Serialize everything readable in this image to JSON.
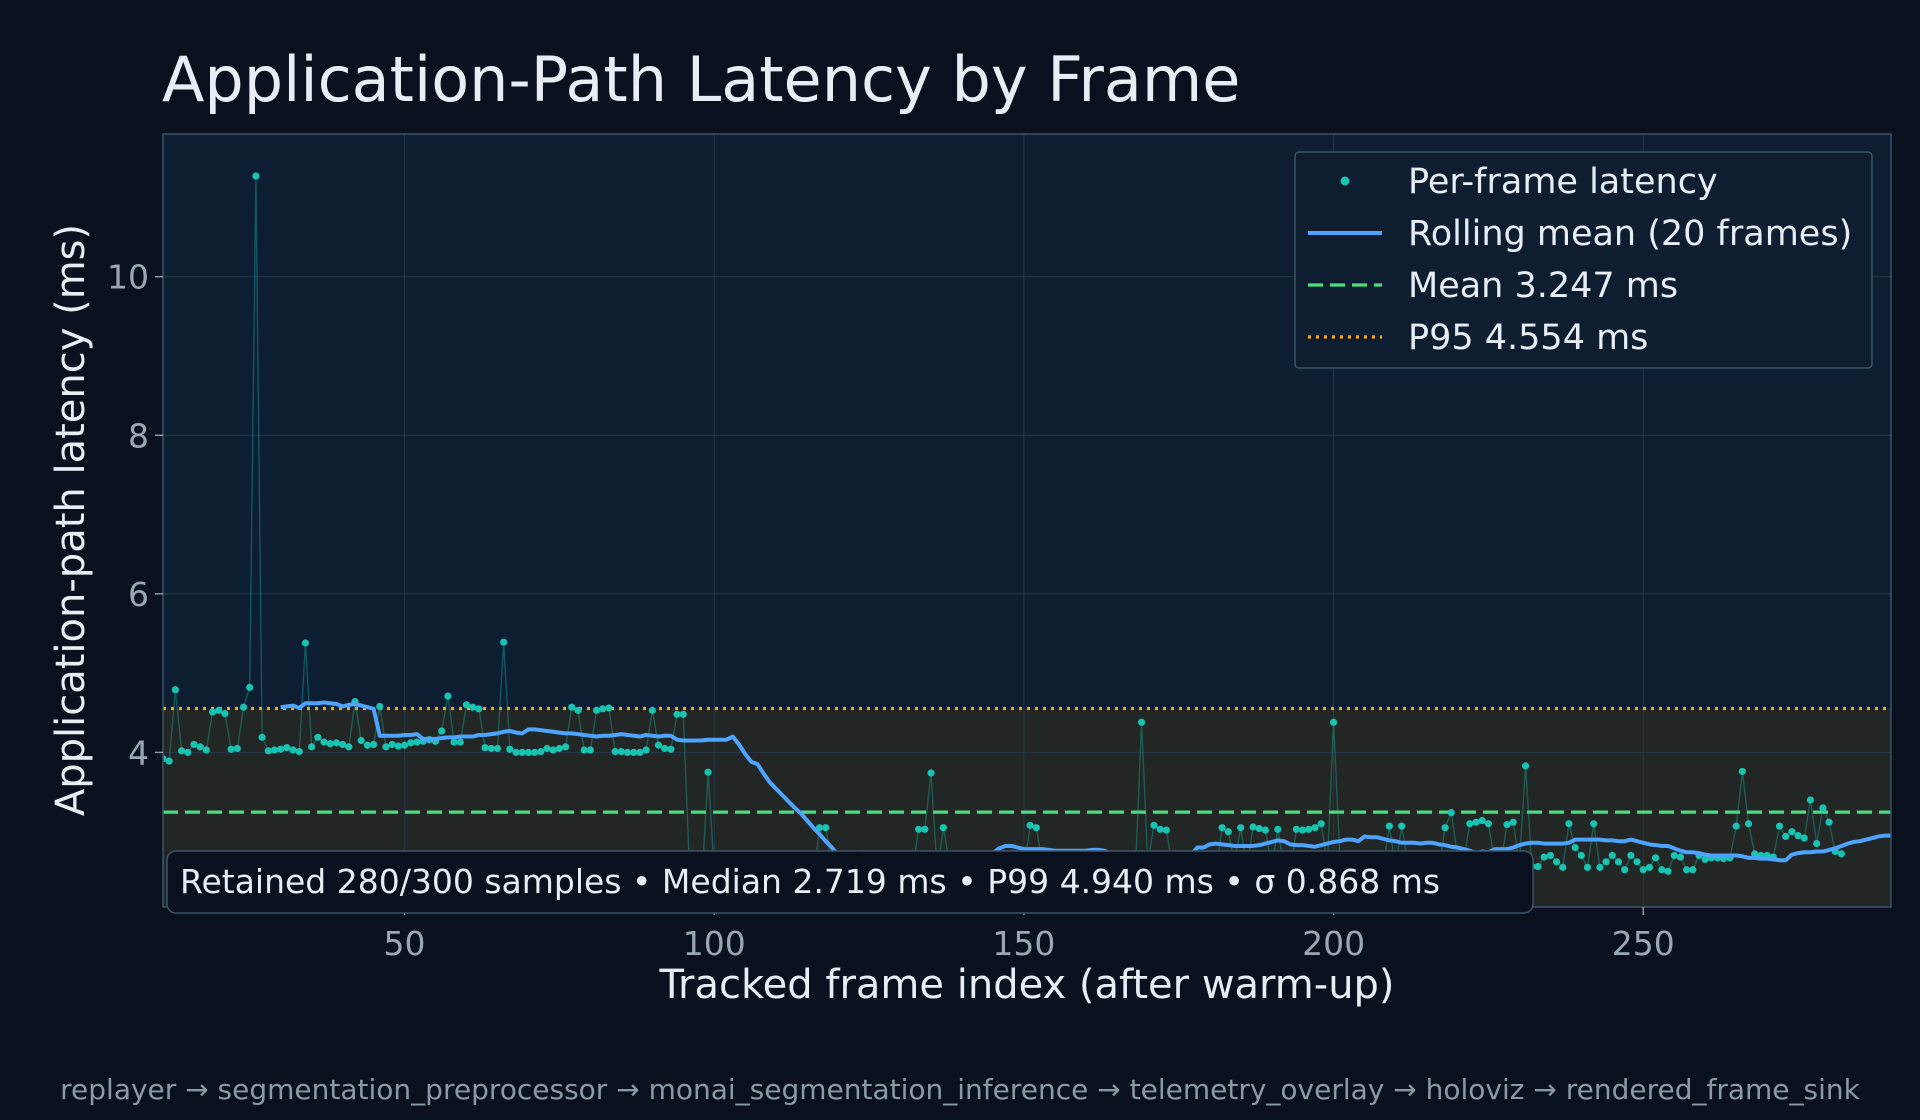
{
  "chart_data": {
    "type": "line",
    "title": "Application-Path Latency by Frame",
    "xlabel": "Tracked frame index (after warm-up)",
    "ylabel": "Application-path latency (ms)",
    "xlim": [
      11,
      290
    ],
    "ylim": [
      2.05,
      11.8
    ],
    "x_ticks": [
      50,
      100,
      150,
      200,
      250
    ],
    "y_ticks": [
      4,
      6,
      8,
      10
    ],
    "grid": true,
    "legend_position": "top-right",
    "colors": {
      "points": "#19c3b1",
      "rolling": "#4ea3ff",
      "mean": "#4ade80",
      "p95": "#f5a524",
      "band": "#2a2b24",
      "plot_bg": "#0d1e33"
    },
    "legend": [
      {
        "label": "Per-frame latency",
        "kind": "points"
      },
      {
        "label": "Rolling mean (20 frames)",
        "kind": "rolling"
      },
      {
        "label": "Mean 3.247 ms",
        "kind": "mean"
      },
      {
        "label": "P95 4.554 ms",
        "kind": "p95"
      }
    ],
    "reference_lines": {
      "mean": 3.247,
      "p95": 4.554
    },
    "series": [
      {
        "name": "Per-frame latency",
        "x_start": 11,
        "x_step": 1,
        "values": [
          3.92,
          3.89,
          4.79,
          4.02,
          4.0,
          4.1,
          4.07,
          4.03,
          4.51,
          4.53,
          4.49,
          4.04,
          4.05,
          4.57,
          4.82,
          11.27,
          4.19,
          4.02,
          4.03,
          4.04,
          4.06,
          4.03,
          4.01,
          5.38,
          4.07,
          4.19,
          4.13,
          4.11,
          4.12,
          4.1,
          4.07,
          4.64,
          4.15,
          4.09,
          4.1,
          4.58,
          4.07,
          4.1,
          4.08,
          4.09,
          4.12,
          4.13,
          4.14,
          4.16,
          4.14,
          4.27,
          4.71,
          4.13,
          4.13,
          4.6,
          4.57,
          4.55,
          4.06,
          4.05,
          4.05,
          5.39,
          4.04,
          4.0,
          4.0,
          4.0,
          4.0,
          4.01,
          4.05,
          4.03,
          4.05,
          4.07,
          4.57,
          4.53,
          4.03,
          4.03,
          4.53,
          4.55,
          4.56,
          4.01,
          4.01,
          4.0,
          4.0,
          4.0,
          4.03,
          4.53,
          4.09,
          4.05,
          4.04,
          4.48,
          4.48,
          2.55,
          2.4,
          2.35,
          3.75,
          2.5,
          2.45,
          2.4,
          2.4,
          2.45,
          2.4,
          2.4,
          2.4,
          2.45,
          2.4,
          2.4,
          2.4,
          2.45,
          2.4,
          2.4,
          2.4,
          2.4,
          3.05,
          3.05,
          2.6,
          2.55,
          2.5,
          2.5,
          2.5,
          2.5,
          2.5,
          2.5,
          2.5,
          2.5,
          2.5,
          2.5,
          2.5,
          2.5,
          3.03,
          3.03,
          3.74,
          2.5,
          3.05,
          2.6,
          2.55,
          2.5,
          2.5,
          2.5,
          2.5,
          2.5,
          2.5,
          2.5,
          2.5,
          2.5,
          2.5,
          2.5,
          3.08,
          3.05,
          2.6,
          2.55,
          2.5,
          2.5,
          2.5,
          2.5,
          2.5,
          2.5,
          2.5,
          2.5,
          2.5,
          2.5,
          2.5,
          2.5,
          2.5,
          2.5,
          4.38,
          2.6,
          3.08,
          3.03,
          3.02,
          2.55,
          2.5,
          2.5,
          2.5,
          2.5,
          2.5,
          2.5,
          2.5,
          3.05,
          3.0,
          2.6,
          3.05,
          2.55,
          3.06,
          3.04,
          3.02,
          2.55,
          3.03,
          2.55,
          2.5,
          3.03,
          3.02,
          3.03,
          3.05,
          3.1,
          2.6,
          4.38,
          2.7,
          2.55,
          2.5,
          2.6,
          2.55,
          2.5,
          2.5,
          2.55,
          3.07,
          2.55,
          3.07,
          2.6,
          2.55,
          2.5,
          2.55,
          2.5,
          2.55,
          3.05,
          3.24,
          2.7,
          2.65,
          3.1,
          3.12,
          3.14,
          3.1,
          2.63,
          2.6,
          3.09,
          3.12,
          2.6,
          3.83,
          2.56,
          2.56,
          2.68,
          2.7,
          2.62,
          2.55,
          3.1,
          2.8,
          2.7,
          2.55,
          3.1,
          2.55,
          2.62,
          2.7,
          2.62,
          2.52,
          2.7,
          2.62,
          2.52,
          2.55,
          2.67,
          2.52,
          2.5,
          2.7,
          2.68,
          2.52,
          2.52,
          2.7,
          2.65,
          2.67,
          2.67,
          2.66,
          2.67,
          3.07,
          3.76,
          3.1,
          2.72,
          2.7,
          2.7,
          2.68,
          3.07,
          2.94,
          3.0,
          2.95,
          2.92,
          3.4,
          2.85,
          3.3,
          3.12,
          2.75,
          2.72
        ]
      },
      {
        "name": "Rolling mean (20 frames)",
        "x_start": 30,
        "x_step": 1,
        "values": [
          4.57,
          4.58,
          4.59,
          4.56,
          4.62,
          4.62,
          4.62,
          4.63,
          4.62,
          4.61,
          4.58,
          4.6,
          4.61,
          4.59,
          4.57,
          4.55,
          4.21,
          4.21,
          4.21,
          4.21,
          4.22,
          4.22,
          4.23,
          4.17,
          4.17,
          4.17,
          4.18,
          4.19,
          4.19,
          4.2,
          4.2,
          4.2,
          4.22,
          4.22,
          4.23,
          4.24,
          4.26,
          4.27,
          4.25,
          4.24,
          4.29,
          4.29,
          4.28,
          4.27,
          4.26,
          4.25,
          4.24,
          4.24,
          4.23,
          4.22,
          4.21,
          4.2,
          4.21,
          4.21,
          4.22,
          4.23,
          4.22,
          4.21,
          4.2,
          4.22,
          4.21,
          4.2,
          4.21,
          4.21,
          4.16,
          4.15,
          4.15,
          4.15,
          4.15,
          4.16,
          4.16,
          4.16,
          4.16,
          4.2,
          4.1,
          3.98,
          3.88,
          3.85,
          3.73,
          3.62,
          3.54,
          3.46,
          3.38,
          3.3,
          3.23,
          3.14,
          3.05,
          2.97,
          2.88,
          2.8,
          2.7,
          2.7,
          2.7,
          2.7,
          2.74,
          2.7,
          2.7,
          2.7,
          2.7,
          2.7,
          2.7,
          2.7,
          2.7,
          2.7,
          2.7,
          2.7,
          2.7,
          2.7,
          2.7,
          2.7,
          2.7,
          2.7,
          2.7,
          2.7,
          2.7,
          2.73,
          2.79,
          2.82,
          2.82,
          2.8,
          2.78,
          2.78,
          2.78,
          2.78,
          2.77,
          2.76,
          2.76,
          2.76,
          2.76,
          2.76,
          2.76,
          2.77,
          2.77,
          2.76,
          2.73,
          2.72,
          2.71,
          2.71,
          2.71,
          2.7,
          2.7,
          2.7,
          2.7,
          2.7,
          2.7,
          2.7,
          2.7,
          2.71,
          2.8,
          2.8,
          2.84,
          2.85,
          2.84,
          2.83,
          2.82,
          2.82,
          2.82,
          2.82,
          2.83,
          2.85,
          2.87,
          2.89,
          2.88,
          2.84,
          2.83,
          2.83,
          2.82,
          2.81,
          2.83,
          2.85,
          2.87,
          2.88,
          2.9,
          2.9,
          2.88,
          2.94,
          2.93,
          2.93,
          2.91,
          2.89,
          2.88,
          2.86,
          2.86,
          2.86,
          2.85,
          2.86,
          2.86,
          2.84,
          2.83,
          2.81,
          2.8,
          2.78,
          2.76,
          2.73,
          2.75,
          2.74,
          2.78,
          2.78,
          2.78,
          2.8,
          2.83,
          2.85,
          2.86,
          2.86,
          2.85,
          2.85,
          2.85,
          2.85,
          2.86,
          2.9,
          2.9,
          2.9,
          2.9,
          2.9,
          2.89,
          2.89,
          2.88,
          2.88,
          2.9,
          2.88,
          2.86,
          2.84,
          2.83,
          2.82,
          2.82,
          2.79,
          2.76,
          2.74,
          2.74,
          2.73,
          2.71,
          2.7,
          2.7,
          2.7,
          2.7,
          2.7,
          2.69,
          2.67,
          2.67,
          2.66,
          2.66,
          2.65,
          2.64,
          2.64,
          2.71,
          2.73,
          2.74,
          2.74,
          2.75,
          2.75,
          2.77,
          2.79,
          2.82,
          2.85,
          2.87,
          2.88,
          2.9,
          2.92,
          2.94,
          2.95,
          2.95,
          2.95
        ]
      }
    ],
    "stats_box": "Retained 280/300 samples  •  Median 2.719 ms  •  P99 4.940 ms  •  σ 0.868 ms",
    "footer": "replayer → segmentation_preprocessor → monai_segmentation_inference → telemetry_overlay → holoviz → rendered_frame_sink"
  }
}
